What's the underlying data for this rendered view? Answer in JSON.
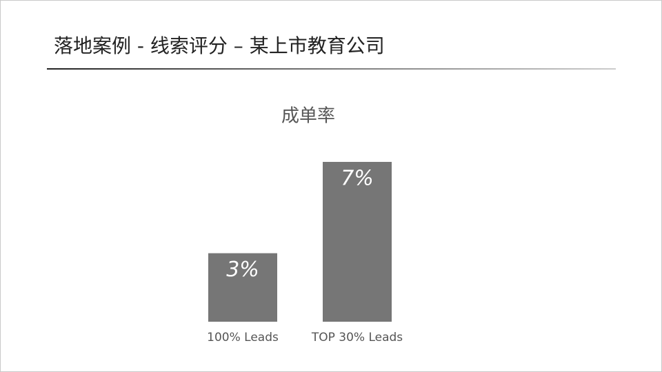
{
  "header": {
    "title": "落地案例 - 线索评分 – 某上市教育公司"
  },
  "chart_data": {
    "type": "bar",
    "title": "成单率",
    "categories": [
      "100% Leads",
      "TOP 30% Leads"
    ],
    "values": [
      3,
      7
    ],
    "value_labels": [
      "3%",
      "7%"
    ],
    "color": "#767676"
  }
}
